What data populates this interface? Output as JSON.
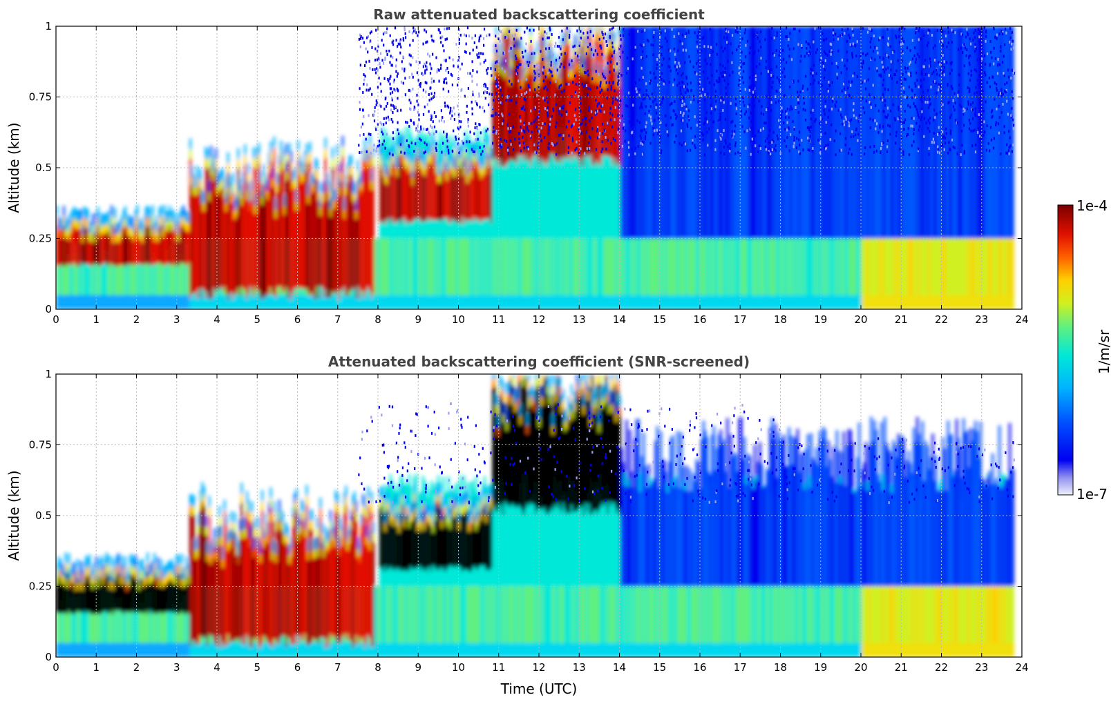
{
  "chart_data": [
    {
      "type": "heatmap",
      "title": "Raw attenuated backscattering coefficient",
      "xlabel": "",
      "ylabel": "Altitude (km)",
      "xlim": [
        0,
        24
      ],
      "ylim": [
        0,
        1
      ],
      "xticks": [
        "0",
        "1",
        "2",
        "3",
        "4",
        "5",
        "6",
        "7",
        "8",
        "9",
        "10",
        "11",
        "12",
        "13",
        "14",
        "15",
        "16",
        "17",
        "18",
        "19",
        "20",
        "21",
        "22",
        "23",
        "24"
      ],
      "yticks": [
        "0",
        "0.25",
        "0.5",
        "0.75",
        "1"
      ],
      "grid": true,
      "colormap": "jet (log scale)",
      "data_x_extent": [
        0,
        23.8
      ],
      "layers": [
        {
          "x_range": [
            0,
            3.3
          ],
          "y_range": [
            0.15,
            0.3
          ],
          "intensity": "high"
        },
        {
          "x_range": [
            3.3,
            7.9
          ],
          "y_range": [
            0.03,
            0.55
          ],
          "intensity": "high"
        },
        {
          "x_range": [
            8,
            10.8
          ],
          "y_range": [
            0.3,
            0.55
          ],
          "intensity": "high"
        },
        {
          "x_range": [
            10.8,
            14
          ],
          "y_range": [
            0.5,
            1.0
          ],
          "intensity": "high"
        },
        {
          "x_range": [
            8,
            23.8
          ],
          "y_range": [
            0,
            0.25
          ],
          "intensity": "moderate"
        },
        {
          "x_range": [
            14,
            23.8
          ],
          "y_range": [
            0.25,
            1.0
          ],
          "intensity": "low (noise)"
        }
      ]
    },
    {
      "type": "heatmap",
      "title": "Attenuated backscattering coefficient (SNR-screened)",
      "xlabel": "Time (UTC)",
      "ylabel": "Altitude (km)",
      "xlim": [
        0,
        24
      ],
      "ylim": [
        0,
        1
      ],
      "xticks": [
        "0",
        "1",
        "2",
        "3",
        "4",
        "5",
        "6",
        "7",
        "8",
        "9",
        "10",
        "11",
        "12",
        "13",
        "14",
        "15",
        "16",
        "17",
        "18",
        "19",
        "20",
        "21",
        "22",
        "23",
        "24"
      ],
      "yticks": [
        "0",
        "0.25",
        "0.5",
        "0.75",
        "1"
      ],
      "grid": true,
      "colormap": "jet (log scale), saturated values shown black",
      "data_x_extent": [
        0,
        23.8
      ],
      "layers": [
        {
          "x_range": [
            0,
            3.3
          ],
          "y_range": [
            0.15,
            0.3
          ],
          "intensity": "saturated"
        },
        {
          "x_range": [
            3.3,
            7.9
          ],
          "y_range": [
            0.03,
            0.55
          ],
          "intensity": "high"
        },
        {
          "x_range": [
            8,
            10.8
          ],
          "y_range": [
            0.3,
            0.55
          ],
          "intensity": "saturated"
        },
        {
          "x_range": [
            10.8,
            14
          ],
          "y_range": [
            0.5,
            1.0
          ],
          "intensity": "saturated"
        },
        {
          "x_range": [
            8,
            23.8
          ],
          "y_range": [
            0,
            0.25
          ],
          "intensity": "moderate"
        },
        {
          "x_range": [
            14,
            23.8
          ],
          "y_range": [
            0.25,
            0.85
          ],
          "intensity": "low"
        }
      ]
    }
  ],
  "colorbar": {
    "max_label": "1e-4",
    "min_label": "1e-7",
    "label": "1/m/sr",
    "min_value": 1e-07,
    "max_value": 0.0001,
    "scale": "log"
  }
}
